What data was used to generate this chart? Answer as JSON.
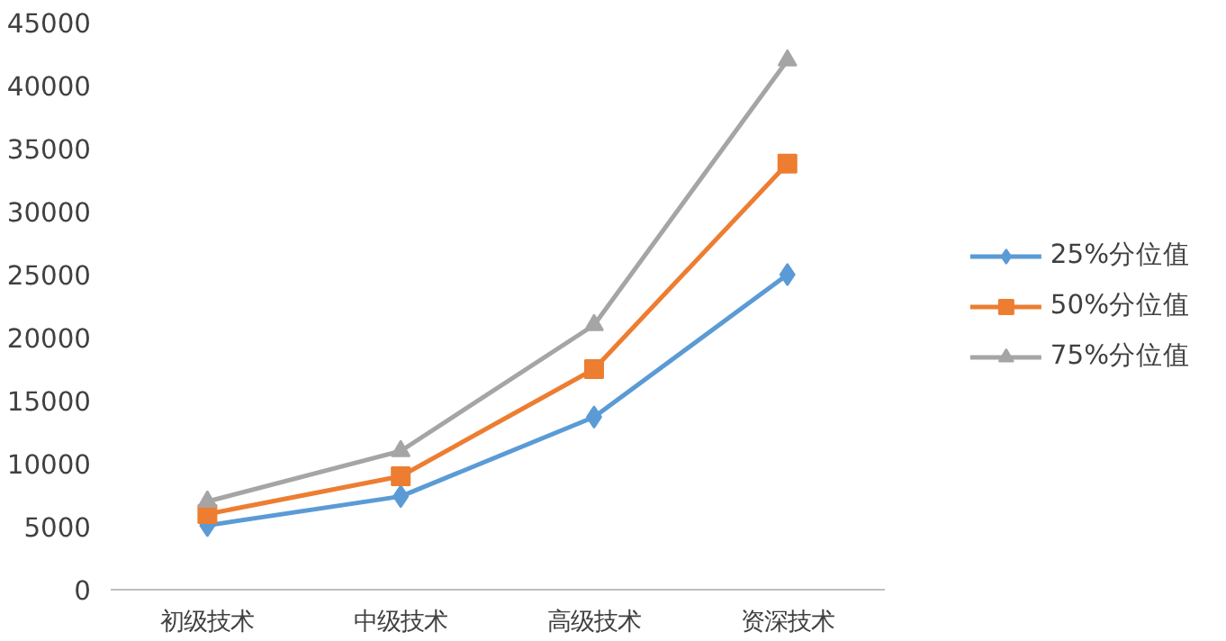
{
  "chart_data": {
    "type": "line",
    "categories": [
      "初级技术",
      "中级技术",
      "高级技术",
      "资深技术"
    ],
    "series": [
      {
        "name": "25%分位值",
        "color": "#5b9bd5",
        "marker": "diamond",
        "values": [
          5100,
          7400,
          13700,
          25000
        ]
      },
      {
        "name": "50%分位值",
        "color": "#ed7d31",
        "marker": "square",
        "values": [
          6000,
          9000,
          17500,
          33800
        ]
      },
      {
        "name": "75%分位值",
        "color": "#a5a5a5",
        "marker": "triangle",
        "values": [
          7000,
          11000,
          21000,
          42000
        ]
      }
    ],
    "ylim": [
      0,
      45000
    ],
    "yticks": [
      0,
      5000,
      10000,
      15000,
      20000,
      25000,
      30000,
      35000,
      40000,
      45000
    ],
    "grid": false,
    "legend": "right"
  }
}
